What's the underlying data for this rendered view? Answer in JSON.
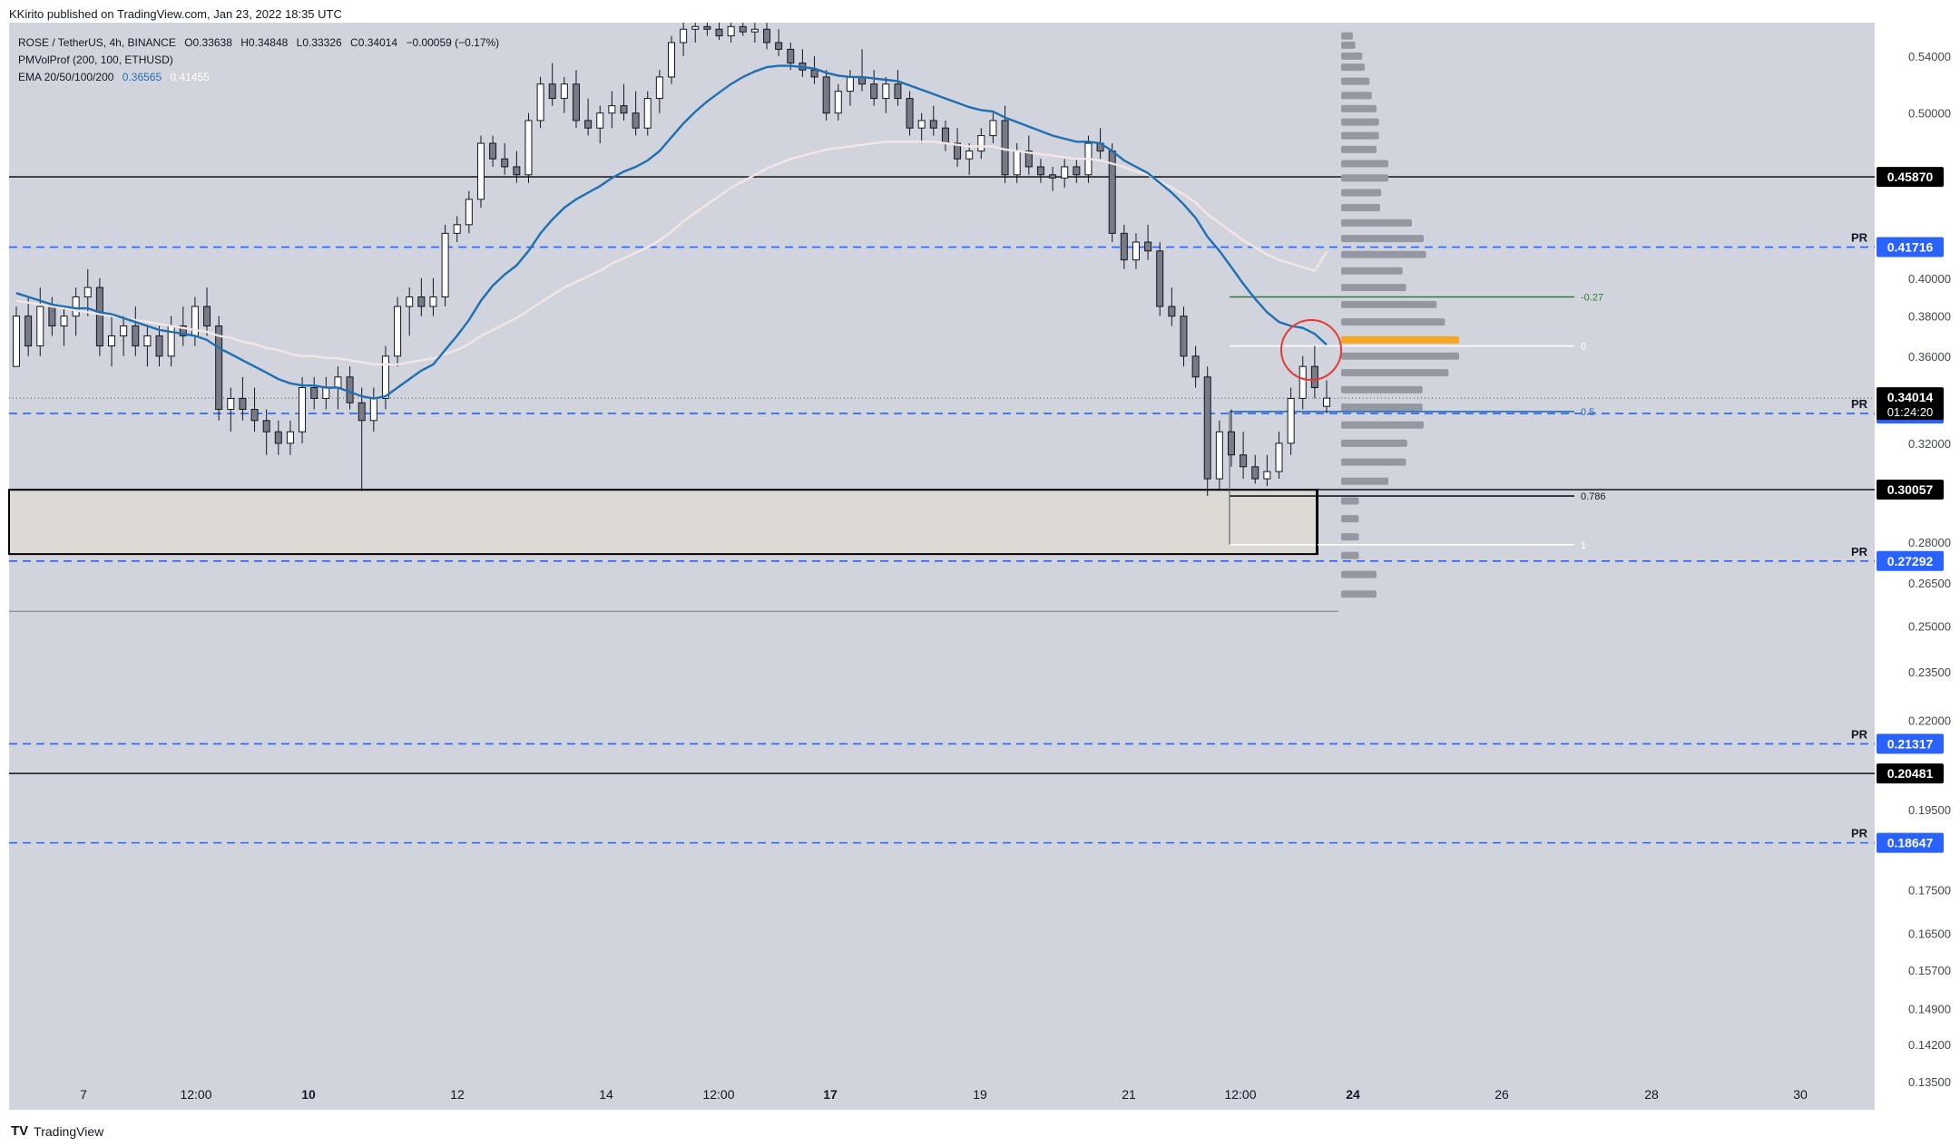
{
  "header": {
    "publisher_line": "KKirito published on TradingView.com, Jan 23, 2022 18:35 UTC"
  },
  "legend": {
    "symbol_line": "ROSE / TetherUS, 4h, BINANCE",
    "ohlc": {
      "o": "O0.33638",
      "h": "H0.34848",
      "l": "L0.33326",
      "c": "C0.34014",
      "chg": "−0.00059 (−0.17%)"
    },
    "indicator_vp": "PMVolProf (200, 100, ETHUSD)",
    "indicator_ema": "EMA 20/50/100/200",
    "ema_value_1": "0.36565",
    "ema_value_2": "0.41455"
  },
  "footer": {
    "brand": "TradingView",
    "brand_mark": "TV"
  },
  "colors": {
    "background": "#d1d4dc",
    "up_candle": "#ffffff",
    "down_candle": "#787b86",
    "ema_fast": "#1f6fb2",
    "ema_slow": "#f2e6e6",
    "pivot_line": "#2962ff",
    "volume_profile": "#9598a1",
    "poc": "#f5a623",
    "zone": "#dddad6"
  },
  "chart_data": {
    "type": "candlestick",
    "y_scale": "log",
    "ylim": [
      0.13,
      0.565
    ],
    "y_ticks": [
      "0.54000",
      "0.50000",
      "0.40000",
      "0.38000",
      "0.36000",
      "0.32000",
      "0.28000",
      "0.26500",
      "0.25000",
      "0.23500",
      "0.22000",
      "0.19500",
      "0.17500",
      "0.16500",
      "0.15700",
      "0.14900",
      "0.14200",
      "0.13500"
    ],
    "x_ticks": [
      "7",
      "12:00",
      "10",
      "12",
      "14",
      "12:00",
      "17",
      "19",
      "21",
      "12:00",
      "24",
      "26",
      "28",
      "30"
    ],
    "bold_x_ticks": [
      "10",
      "17",
      "24"
    ],
    "ohlc": [
      [
        0.355,
        0.385,
        0.355,
        0.38
      ],
      [
        0.38,
        0.39,
        0.36,
        0.365
      ],
      [
        0.365,
        0.395,
        0.36,
        0.385
      ],
      [
        0.385,
        0.39,
        0.37,
        0.375
      ],
      [
        0.375,
        0.385,
        0.365,
        0.38
      ],
      [
        0.38,
        0.395,
        0.37,
        0.39
      ],
      [
        0.39,
        0.405,
        0.38,
        0.395
      ],
      [
        0.395,
        0.4,
        0.36,
        0.365
      ],
      [
        0.365,
        0.38,
        0.355,
        0.37
      ],
      [
        0.37,
        0.38,
        0.36,
        0.375
      ],
      [
        0.375,
        0.385,
        0.36,
        0.365
      ],
      [
        0.365,
        0.375,
        0.355,
        0.37
      ],
      [
        0.37,
        0.375,
        0.355,
        0.36
      ],
      [
        0.36,
        0.38,
        0.355,
        0.375
      ],
      [
        0.375,
        0.385,
        0.365,
        0.37
      ],
      [
        0.37,
        0.39,
        0.365,
        0.385
      ],
      [
        0.385,
        0.395,
        0.37,
        0.375
      ],
      [
        0.375,
        0.38,
        0.33,
        0.335
      ],
      [
        0.335,
        0.345,
        0.325,
        0.34
      ],
      [
        0.34,
        0.35,
        0.33,
        0.335
      ],
      [
        0.335,
        0.345,
        0.325,
        0.33
      ],
      [
        0.33,
        0.335,
        0.315,
        0.325
      ],
      [
        0.325,
        0.33,
        0.315,
        0.32
      ],
      [
        0.32,
        0.33,
        0.315,
        0.325
      ],
      [
        0.325,
        0.35,
        0.32,
        0.345
      ],
      [
        0.345,
        0.35,
        0.335,
        0.34
      ],
      [
        0.34,
        0.35,
        0.335,
        0.345
      ],
      [
        0.345,
        0.355,
        0.335,
        0.35
      ],
      [
        0.35,
        0.355,
        0.335,
        0.338
      ],
      [
        0.338,
        0.345,
        0.3,
        0.33
      ],
      [
        0.33,
        0.345,
        0.325,
        0.34
      ],
      [
        0.34,
        0.365,
        0.335,
        0.36
      ],
      [
        0.36,
        0.39,
        0.355,
        0.385
      ],
      [
        0.385,
        0.395,
        0.37,
        0.39
      ],
      [
        0.39,
        0.4,
        0.38,
        0.385
      ],
      [
        0.385,
        0.4,
        0.38,
        0.39
      ],
      [
        0.39,
        0.43,
        0.385,
        0.425
      ],
      [
        0.425,
        0.435,
        0.42,
        0.43
      ],
      [
        0.43,
        0.45,
        0.425,
        0.445
      ],
      [
        0.445,
        0.485,
        0.44,
        0.48
      ],
      [
        0.48,
        0.485,
        0.465,
        0.47
      ],
      [
        0.47,
        0.48,
        0.46,
        0.465
      ],
      [
        0.465,
        0.475,
        0.455,
        0.46
      ],
      [
        0.46,
        0.5,
        0.455,
        0.495
      ],
      [
        0.495,
        0.525,
        0.49,
        0.52
      ],
      [
        0.52,
        0.535,
        0.505,
        0.51
      ],
      [
        0.51,
        0.525,
        0.5,
        0.52
      ],
      [
        0.52,
        0.53,
        0.49,
        0.495
      ],
      [
        0.495,
        0.51,
        0.485,
        0.49
      ],
      [
        0.49,
        0.505,
        0.48,
        0.5
      ],
      [
        0.5,
        0.515,
        0.49,
        0.505
      ],
      [
        0.505,
        0.52,
        0.495,
        0.5
      ],
      [
        0.5,
        0.515,
        0.485,
        0.49
      ],
      [
        0.49,
        0.515,
        0.485,
        0.51
      ],
      [
        0.51,
        0.53,
        0.5,
        0.525
      ],
      [
        0.525,
        0.555,
        0.52,
        0.55
      ],
      [
        0.55,
        0.565,
        0.54,
        0.56
      ],
      [
        0.56,
        0.565,
        0.55,
        0.562
      ],
      [
        0.562,
        0.565,
        0.555,
        0.56
      ],
      [
        0.56,
        0.565,
        0.552,
        0.555
      ],
      [
        0.555,
        0.565,
        0.55,
        0.562
      ],
      [
        0.562,
        0.565,
        0.555,
        0.558
      ],
      [
        0.558,
        0.565,
        0.55,
        0.56
      ],
      [
        0.56,
        0.565,
        0.545,
        0.55
      ],
      [
        0.55,
        0.56,
        0.54,
        0.545
      ],
      [
        0.545,
        0.55,
        0.53,
        0.535
      ],
      [
        0.535,
        0.545,
        0.525,
        0.53
      ],
      [
        0.53,
        0.54,
        0.52,
        0.525
      ],
      [
        0.525,
        0.53,
        0.495,
        0.5
      ],
      [
        0.5,
        0.52,
        0.495,
        0.515
      ],
      [
        0.515,
        0.53,
        0.505,
        0.525
      ],
      [
        0.525,
        0.545,
        0.515,
        0.52
      ],
      [
        0.52,
        0.53,
        0.505,
        0.51
      ],
      [
        0.51,
        0.525,
        0.5,
        0.52
      ],
      [
        0.52,
        0.53,
        0.505,
        0.51
      ],
      [
        0.51,
        0.515,
        0.485,
        0.49
      ],
      [
        0.49,
        0.5,
        0.48,
        0.495
      ],
      [
        0.495,
        0.505,
        0.485,
        0.49
      ],
      [
        0.49,
        0.495,
        0.475,
        0.48
      ],
      [
        0.48,
        0.49,
        0.465,
        0.47
      ],
      [
        0.47,
        0.48,
        0.46,
        0.475
      ],
      [
        0.475,
        0.49,
        0.47,
        0.485
      ],
      [
        0.485,
        0.5,
        0.48,
        0.495
      ],
      [
        0.495,
        0.505,
        0.455,
        0.46
      ],
      [
        0.46,
        0.48,
        0.455,
        0.475
      ],
      [
        0.475,
        0.485,
        0.46,
        0.465
      ],
      [
        0.465,
        0.47,
        0.455,
        0.46
      ],
      [
        0.46,
        0.465,
        0.45,
        0.458
      ],
      [
        0.458,
        0.47,
        0.452,
        0.465
      ],
      [
        0.465,
        0.47,
        0.455,
        0.46
      ],
      [
        0.46,
        0.485,
        0.455,
        0.48
      ],
      [
        0.48,
        0.49,
        0.47,
        0.475
      ],
      [
        0.475,
        0.48,
        0.42,
        0.425
      ],
      [
        0.425,
        0.43,
        0.405,
        0.41
      ],
      [
        0.41,
        0.425,
        0.405,
        0.42
      ],
      [
        0.42,
        0.43,
        0.41,
        0.415
      ],
      [
        0.415,
        0.42,
        0.38,
        0.385
      ],
      [
        0.385,
        0.395,
        0.375,
        0.38
      ],
      [
        0.38,
        0.385,
        0.355,
        0.36
      ],
      [
        0.36,
        0.365,
        0.345,
        0.35
      ],
      [
        0.35,
        0.355,
        0.298,
        0.305
      ],
      [
        0.305,
        0.33,
        0.3,
        0.325
      ],
      [
        0.325,
        0.335,
        0.31,
        0.315
      ],
      [
        0.315,
        0.325,
        0.305,
        0.31
      ],
      [
        0.31,
        0.315,
        0.303,
        0.305
      ],
      [
        0.305,
        0.315,
        0.302,
        0.308
      ],
      [
        0.308,
        0.325,
        0.305,
        0.32
      ],
      [
        0.32,
        0.345,
        0.315,
        0.34
      ],
      [
        0.34,
        0.36,
        0.335,
        0.355
      ],
      [
        0.355,
        0.365,
        0.34,
        0.345
      ],
      [
        0.33638,
        0.34848,
        0.33326,
        0.34014
      ]
    ],
    "ema_fast": [
      0.392,
      0.39,
      0.388,
      0.386,
      0.385,
      0.384,
      0.384,
      0.382,
      0.381,
      0.379,
      0.377,
      0.375,
      0.373,
      0.372,
      0.371,
      0.37,
      0.368,
      0.364,
      0.361,
      0.358,
      0.355,
      0.352,
      0.349,
      0.347,
      0.346,
      0.346,
      0.345,
      0.345,
      0.343,
      0.341,
      0.34,
      0.341,
      0.345,
      0.349,
      0.353,
      0.356,
      0.363,
      0.37,
      0.378,
      0.388,
      0.396,
      0.402,
      0.407,
      0.415,
      0.425,
      0.433,
      0.44,
      0.445,
      0.449,
      0.453,
      0.458,
      0.462,
      0.465,
      0.469,
      0.475,
      0.484,
      0.493,
      0.501,
      0.508,
      0.514,
      0.52,
      0.525,
      0.529,
      0.532,
      0.533,
      0.533,
      0.532,
      0.531,
      0.528,
      0.526,
      0.525,
      0.525,
      0.524,
      0.523,
      0.522,
      0.519,
      0.516,
      0.513,
      0.51,
      0.507,
      0.504,
      0.502,
      0.501,
      0.497,
      0.494,
      0.491,
      0.488,
      0.485,
      0.483,
      0.481,
      0.481,
      0.48,
      0.475,
      0.469,
      0.465,
      0.461,
      0.455,
      0.449,
      0.442,
      0.434,
      0.423,
      0.415,
      0.406,
      0.397,
      0.389,
      0.382,
      0.377,
      0.375,
      0.374,
      0.371,
      0.36565
    ],
    "ema_slow": [
      0.388,
      0.387,
      0.386,
      0.385,
      0.384,
      0.383,
      0.382,
      0.381,
      0.38,
      0.379,
      0.378,
      0.377,
      0.376,
      0.375,
      0.374,
      0.373,
      0.372,
      0.37,
      0.369,
      0.367,
      0.366,
      0.364,
      0.363,
      0.361,
      0.36,
      0.36,
      0.359,
      0.359,
      0.358,
      0.357,
      0.356,
      0.356,
      0.356,
      0.357,
      0.358,
      0.359,
      0.361,
      0.363,
      0.366,
      0.37,
      0.373,
      0.376,
      0.379,
      0.383,
      0.387,
      0.391,
      0.395,
      0.398,
      0.401,
      0.404,
      0.408,
      0.411,
      0.414,
      0.417,
      0.421,
      0.426,
      0.432,
      0.437,
      0.442,
      0.447,
      0.452,
      0.456,
      0.46,
      0.464,
      0.467,
      0.47,
      0.472,
      0.474,
      0.476,
      0.477,
      0.478,
      0.479,
      0.48,
      0.481,
      0.481,
      0.481,
      0.481,
      0.481,
      0.48,
      0.479,
      0.478,
      0.478,
      0.478,
      0.476,
      0.475,
      0.474,
      0.473,
      0.472,
      0.471,
      0.47,
      0.47,
      0.469,
      0.467,
      0.465,
      0.462,
      0.46,
      0.456,
      0.452,
      0.448,
      0.443,
      0.436,
      0.431,
      0.426,
      0.421,
      0.417,
      0.413,
      0.41,
      0.408,
      0.406,
      0.404,
      0.41455
    ]
  },
  "levels": [
    {
      "label": "0.45870",
      "price": 0.4587,
      "style": "solid",
      "tag": ""
    },
    {
      "label": "0.41716",
      "price": 0.41716,
      "style": "dashed",
      "tag": "PR"
    },
    {
      "label": "0.33313",
      "price": 0.33313,
      "style": "dashed",
      "tag": "PR"
    },
    {
      "label": "0.30057",
      "price": 0.30057,
      "style": "solid",
      "tag": ""
    },
    {
      "label": "0.27292",
      "price": 0.27292,
      "style": "dashed",
      "tag": "PR"
    },
    {
      "label": "0.21317",
      "price": 0.21317,
      "style": "dashed",
      "tag": "PR"
    },
    {
      "label": "0.20481",
      "price": 0.20481,
      "style": "solid",
      "tag": ""
    },
    {
      "label": "0.18647",
      "price": 0.18647,
      "style": "dashed",
      "tag": "PR"
    }
  ],
  "current_price": {
    "value": "0.34014",
    "countdown": "01:24:20"
  },
  "fib": [
    {
      "label": "-0.27",
      "price": 0.39,
      "color": "#2e7d32"
    },
    {
      "label": "0",
      "price": 0.365,
      "color": "#ffffff"
    },
    {
      "label": "0.5",
      "price": 0.334,
      "color": "#1f6fb2"
    },
    {
      "label": "0.786",
      "price": 0.298,
      "color": "#131722"
    },
    {
      "label": "1",
      "price": 0.279,
      "color": "#ffffff"
    }
  ],
  "zone": {
    "top": 0.3005,
    "bottom": 0.2755
  },
  "volume_profile": [
    {
      "price": 0.555,
      "vol": 0.1
    },
    {
      "price": 0.548,
      "vol": 0.12
    },
    {
      "price": 0.54,
      "vol": 0.18
    },
    {
      "price": 0.532,
      "vol": 0.2
    },
    {
      "price": 0.522,
      "vol": 0.24
    },
    {
      "price": 0.512,
      "vol": 0.26
    },
    {
      "price": 0.503,
      "vol": 0.3
    },
    {
      "price": 0.494,
      "vol": 0.32
    },
    {
      "price": 0.485,
      "vol": 0.32
    },
    {
      "price": 0.476,
      "vol": 0.3
    },
    {
      "price": 0.467,
      "vol": 0.4
    },
    {
      "price": 0.458,
      "vol": 0.4
    },
    {
      "price": 0.449,
      "vol": 0.34
    },
    {
      "price": 0.44,
      "vol": 0.33
    },
    {
      "price": 0.431,
      "vol": 0.6
    },
    {
      "price": 0.422,
      "vol": 0.7
    },
    {
      "price": 0.413,
      "vol": 0.72
    },
    {
      "price": 0.404,
      "vol": 0.52
    },
    {
      "price": 0.395,
      "vol": 0.55
    },
    {
      "price": 0.386,
      "vol": 0.81
    },
    {
      "price": 0.377,
      "vol": 0.88
    },
    {
      "price": 0.368,
      "vol": 1.0,
      "poc": true
    },
    {
      "price": 0.36,
      "vol": 1.0
    },
    {
      "price": 0.352,
      "vol": 0.91
    },
    {
      "price": 0.344,
      "vol": 0.69
    },
    {
      "price": 0.336,
      "vol": 0.69
    },
    {
      "price": 0.328,
      "vol": 0.7
    },
    {
      "price": 0.32,
      "vol": 0.56
    },
    {
      "price": 0.312,
      "vol": 0.55
    },
    {
      "price": 0.304,
      "vol": 0.4
    },
    {
      "price": 0.296,
      "vol": 0.15
    },
    {
      "price": 0.289,
      "vol": 0.15
    },
    {
      "price": 0.282,
      "vol": 0.15
    },
    {
      "price": 0.275,
      "vol": 0.15
    },
    {
      "price": 0.268,
      "vol": 0.3
    },
    {
      "price": 0.261,
      "vol": 0.3
    }
  ]
}
